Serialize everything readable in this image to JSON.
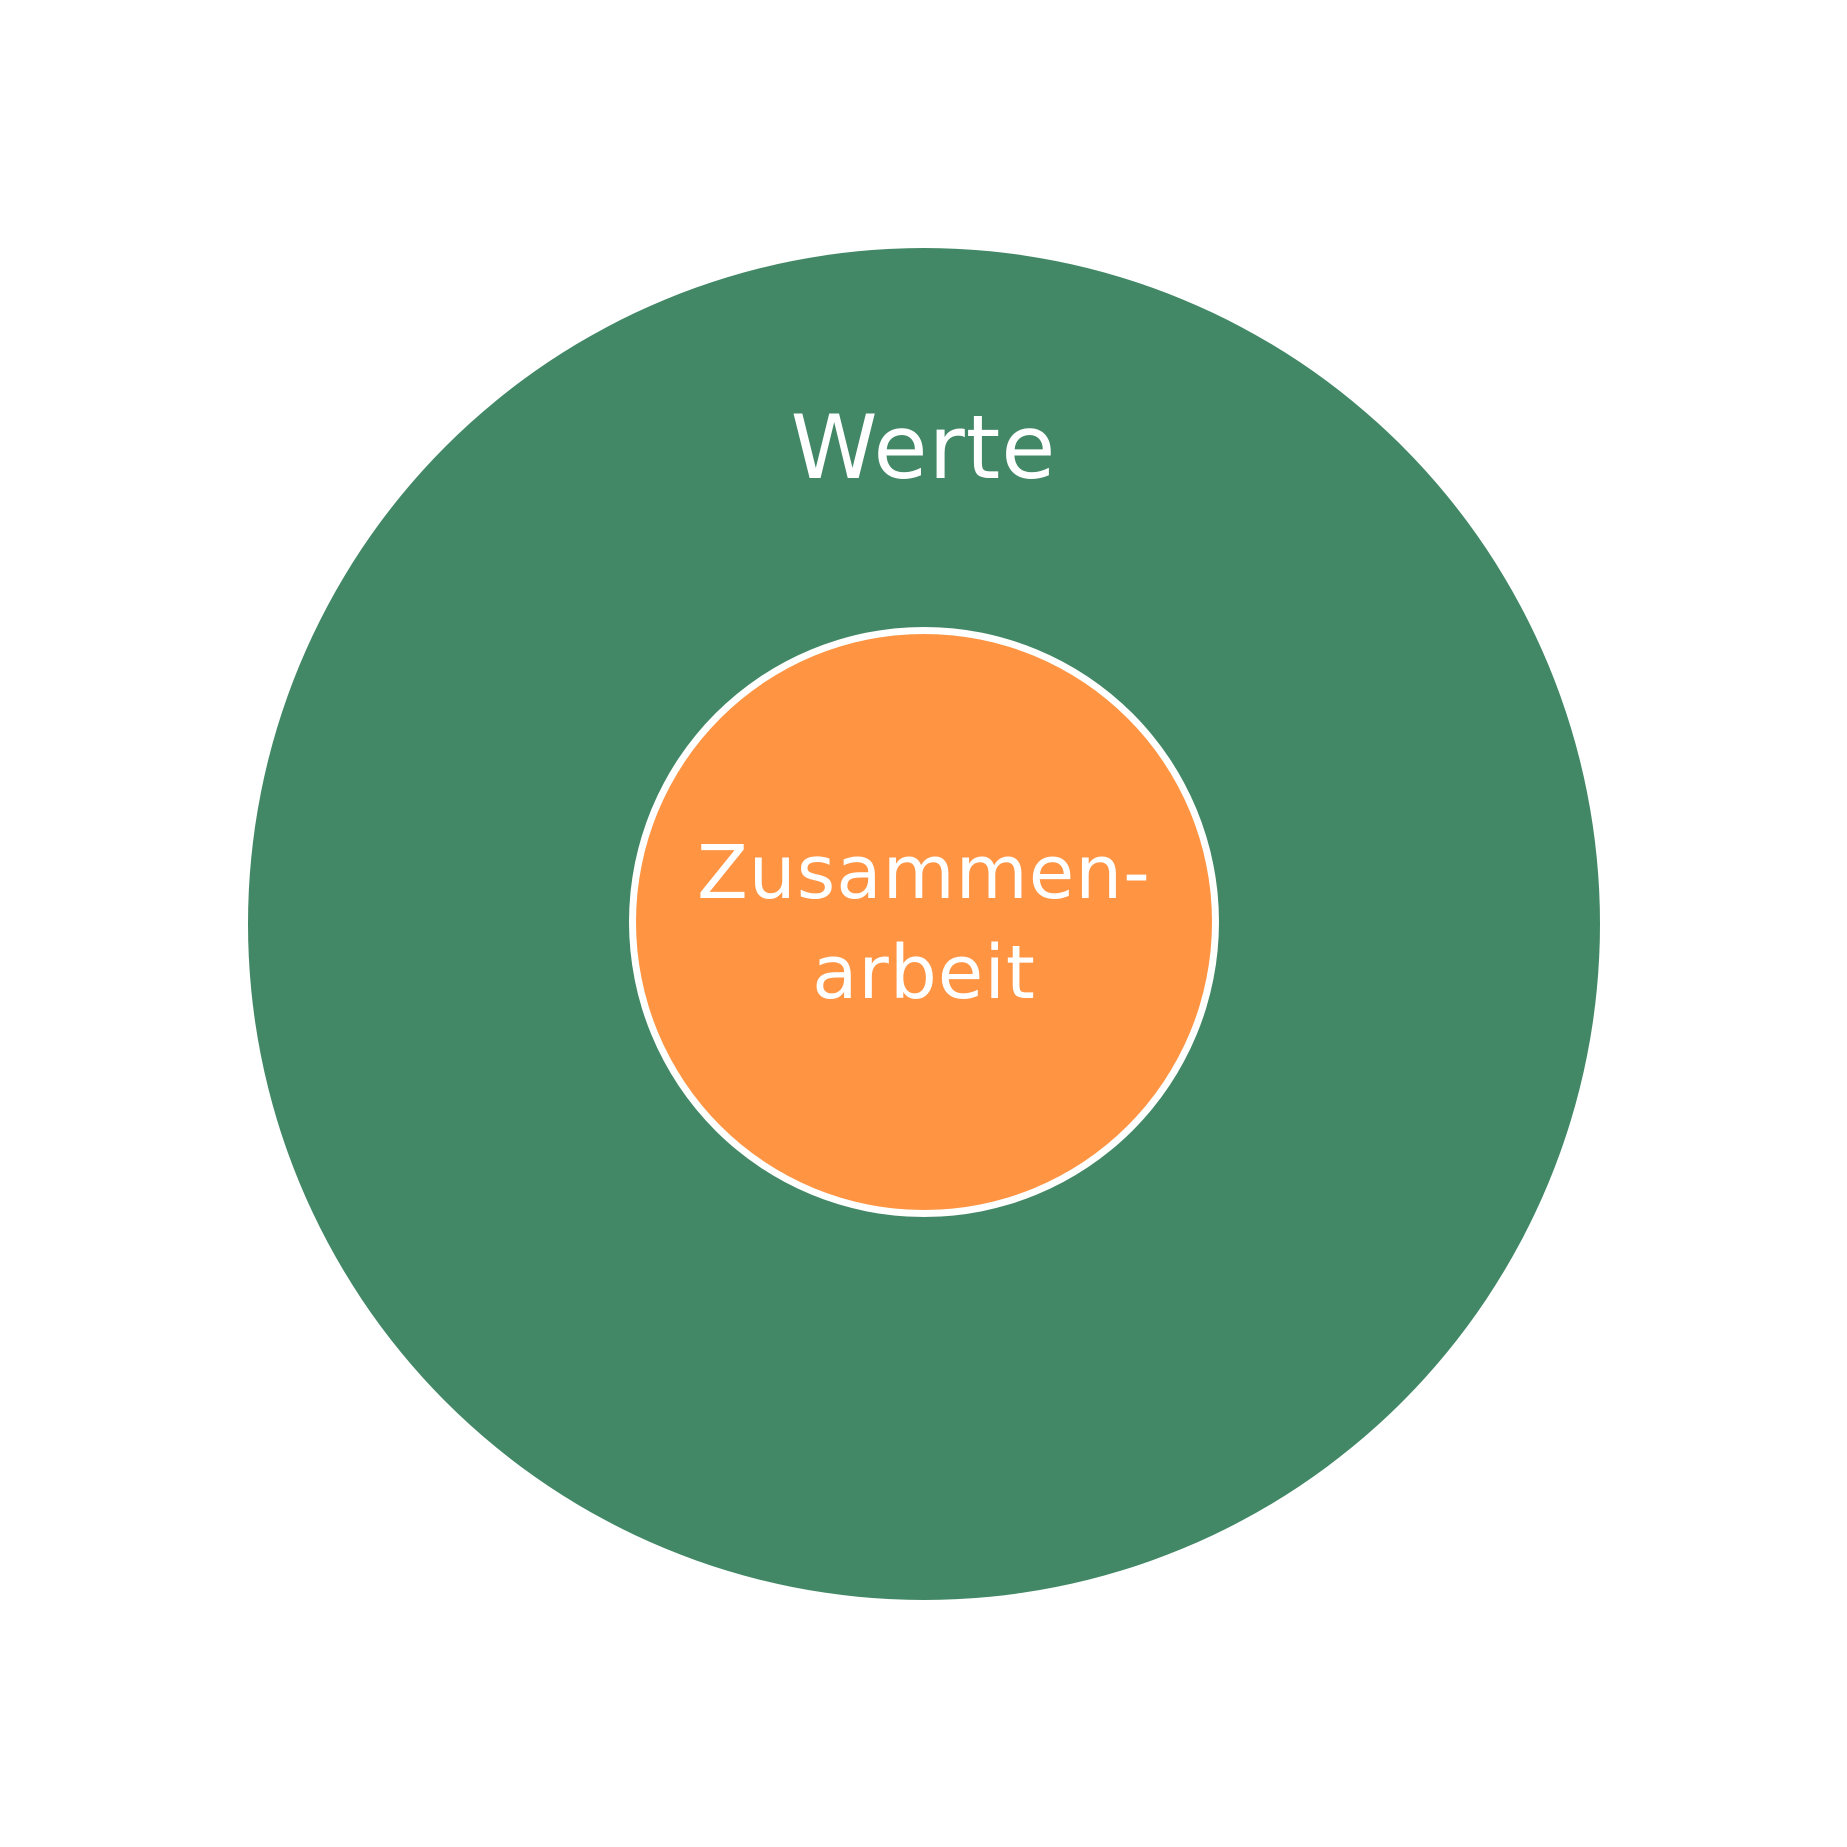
{
  "diagram": {
    "outer": {
      "label": "Werte",
      "color": "#428866"
    },
    "inner": {
      "label_line1": "Zusammen-",
      "label_line2": "arbeit",
      "color": "#ff9443",
      "ring_color": "#ffffff"
    }
  }
}
